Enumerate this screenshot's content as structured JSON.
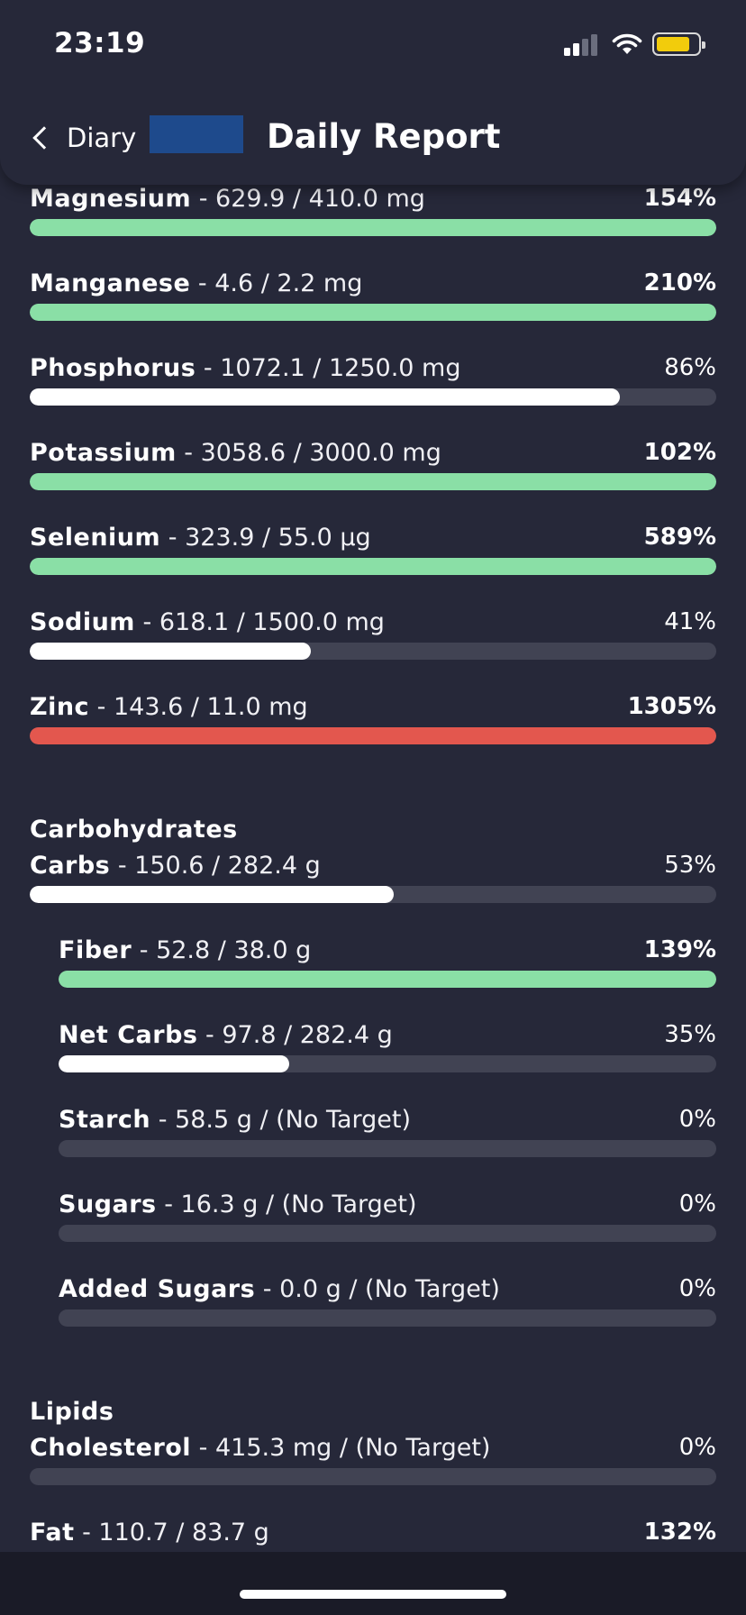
{
  "status_bar": {
    "time": "23:19"
  },
  "nav": {
    "back_label": "Diary",
    "title": "Daily Report"
  },
  "colors": {
    "ok": "#8adfa6",
    "over": "#e3574e",
    "under": "#ffffff",
    "track": "#414353"
  },
  "sections": [
    {
      "title": "",
      "items": [
        {
          "name": "Magnesium",
          "detail": " - 629.9 / 410.0 mg",
          "percent": "154%",
          "status": "ok",
          "bold_pct": true,
          "indent": false,
          "fill": 1.0
        },
        {
          "name": "Manganese",
          "detail": " - 4.6 / 2.2 mg",
          "percent": "210%",
          "status": "ok",
          "bold_pct": true,
          "indent": false,
          "fill": 1.0
        },
        {
          "name": "Phosphorus",
          "detail": " - 1072.1 / 1250.0 mg",
          "percent": "86%",
          "status": "under",
          "bold_pct": false,
          "indent": false,
          "fill": 0.86
        },
        {
          "name": "Potassium",
          "detail": " - 3058.6 / 3000.0 mg",
          "percent": "102%",
          "status": "ok",
          "bold_pct": true,
          "indent": false,
          "fill": 1.0
        },
        {
          "name": "Selenium",
          "detail": " - 323.9 / 55.0 µg",
          "percent": "589%",
          "status": "ok",
          "bold_pct": true,
          "indent": false,
          "fill": 1.0
        },
        {
          "name": "Sodium",
          "detail": " - 618.1 / 1500.0 mg",
          "percent": "41%",
          "status": "under",
          "bold_pct": false,
          "indent": false,
          "fill": 0.41
        },
        {
          "name": "Zinc",
          "detail": " - 143.6 / 11.0 mg",
          "percent": "1305%",
          "status": "over",
          "bold_pct": true,
          "indent": false,
          "fill": 1.0
        }
      ]
    },
    {
      "title": "Carbohydrates",
      "items": [
        {
          "name": "Carbs",
          "detail": " - 150.6 / 282.4 g",
          "percent": "53%",
          "status": "under",
          "bold_pct": false,
          "indent": false,
          "fill": 0.53
        },
        {
          "name": "Fiber",
          "detail": " - 52.8 / 38.0 g",
          "percent": "139%",
          "status": "ok",
          "bold_pct": true,
          "indent": true,
          "fill": 1.0
        },
        {
          "name": "Net Carbs",
          "detail": " - 97.8 / 282.4 g",
          "percent": "35%",
          "status": "under",
          "bold_pct": false,
          "indent": true,
          "fill": 0.35
        },
        {
          "name": "Starch",
          "detail": " - 58.5 g / (No Target)",
          "percent": "0%",
          "status": "under",
          "bold_pct": false,
          "indent": true,
          "fill": 0
        },
        {
          "name": "Sugars",
          "detail": " - 16.3 g / (No Target)",
          "percent": "0%",
          "status": "under",
          "bold_pct": false,
          "indent": true,
          "fill": 0
        },
        {
          "name": "Added Sugars",
          "detail": " - 0.0 g / (No Target)",
          "percent": "0%",
          "status": "under",
          "bold_pct": false,
          "indent": true,
          "fill": 0
        }
      ]
    },
    {
      "title": "Lipids",
      "items": [
        {
          "name": "Cholesterol",
          "detail": " - 415.3 mg / (No Target)",
          "percent": "0%",
          "status": "under",
          "bold_pct": false,
          "indent": false,
          "fill": 0
        },
        {
          "name": "Fat",
          "detail": " - 110.7 / 83.7 g",
          "percent": "132%",
          "status": "over",
          "bold_pct": true,
          "indent": false,
          "fill": 1.0
        }
      ]
    }
  ]
}
